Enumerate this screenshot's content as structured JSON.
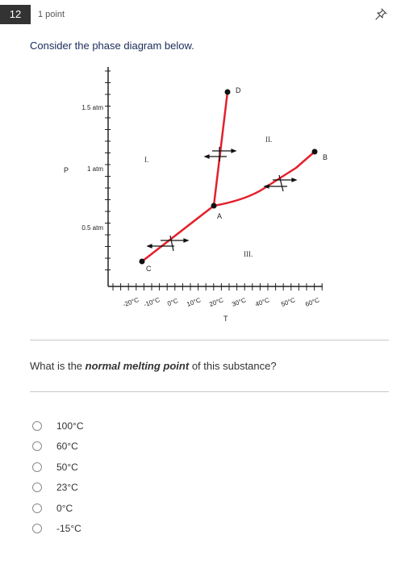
{
  "question": {
    "number": "12",
    "points": "1 point",
    "prompt": "Consider the phase diagram below.",
    "text_before": "What is the ",
    "text_emphasis": "normal melting point",
    "text_after": " of this substance?"
  },
  "diagram": {
    "y_axis_label": "P",
    "x_axis_label": "T",
    "pressure_labels": [
      "1.5 atm",
      "1 atm",
      "0.5 atm"
    ],
    "temperature_labels": [
      "-20°C",
      "-10°C",
      "0°C",
      "10°C",
      "20°C",
      "30°C",
      "40°C",
      "50°C",
      "60°C"
    ],
    "point_labels": [
      "D",
      "B",
      "A",
      "C"
    ],
    "region_labels": [
      "I.",
      "II.",
      "III."
    ],
    "line_color": "#e4202c"
  },
  "options": [
    "100°C",
    "60°C",
    "50°C",
    "23°C",
    "0°C",
    "-15°C"
  ]
}
